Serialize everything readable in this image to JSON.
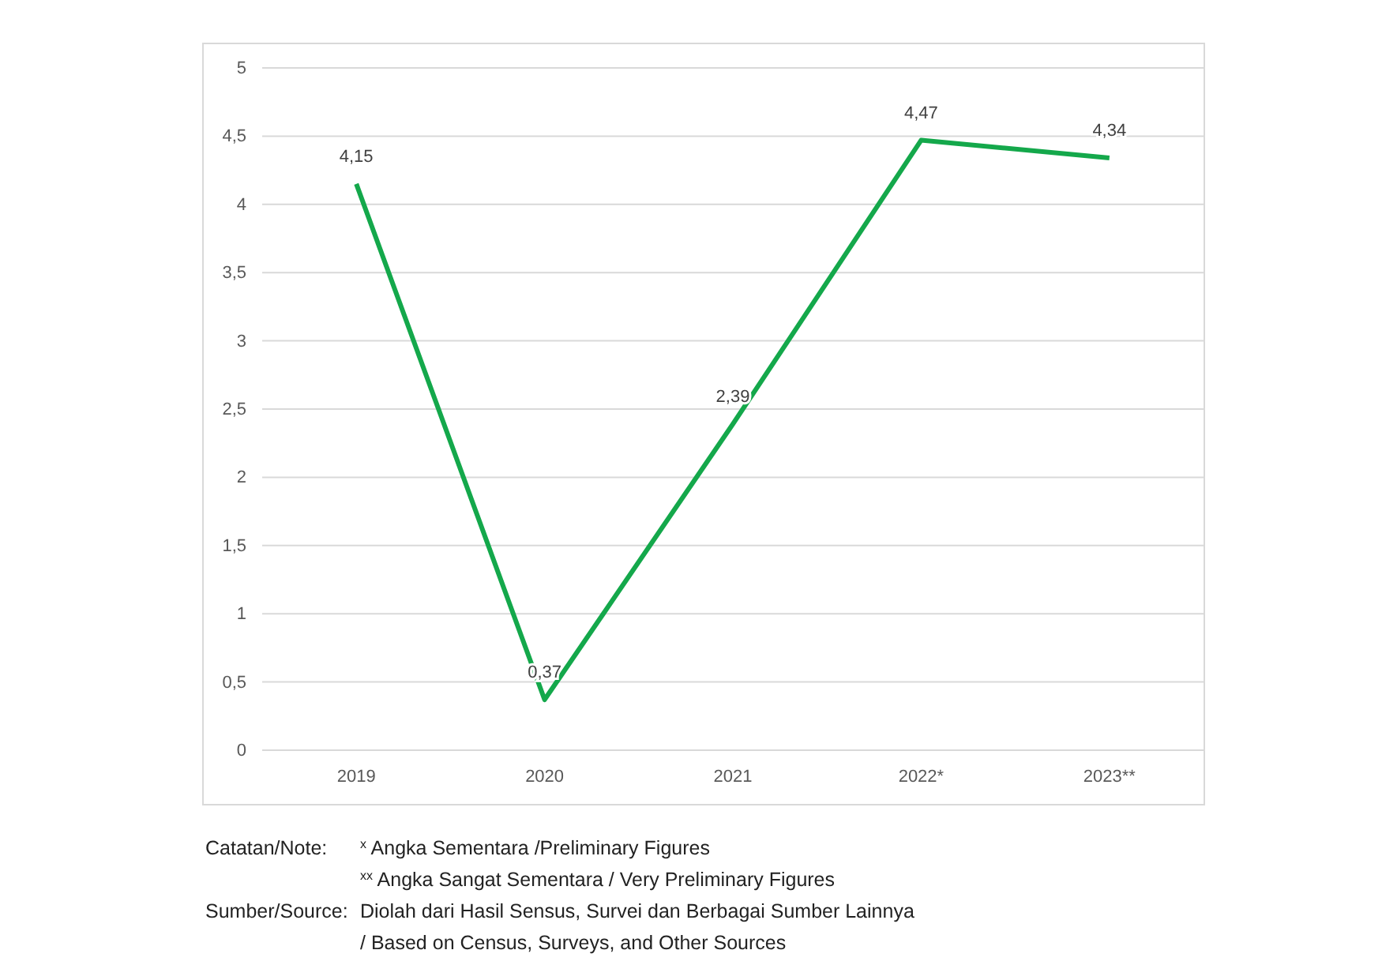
{
  "chart_data": {
    "type": "line",
    "categories": [
      "2019",
      "2020",
      "2021",
      "2022*",
      "2023**"
    ],
    "series": [
      {
        "color": "#14a84b",
        "values": [
          4.15,
          0.37,
          2.39,
          4.47,
          4.34
        ],
        "value_labels": [
          "4,15",
          "0,37",
          "2,39",
          "4,47",
          "4,34"
        ]
      }
    ],
    "ylim": [
      0,
      5
    ],
    "yticks": [
      0,
      {
        "value": 0.5,
        "label": "0,5"
      },
      1,
      {
        "value": 1.5,
        "label": "1,5"
      },
      2,
      {
        "value": 2.5,
        "label": "2,5"
      },
      3,
      {
        "value": 3.5,
        "label": "3,5"
      },
      4,
      {
        "value": 4.5,
        "label": "4,5"
      },
      5
    ],
    "grid": "y",
    "marker": "none",
    "line_style": "solid",
    "annotations": [
      "Catatan/Note:",
      "$^{x}$ Angka Sementara /Preliminary Figures",
      "$^{xx}$ Angka Sangat Sementara / Very Preliminary Figures",
      "Sumber/Source:",
      "Diolah dari Hasil Sensus, Survei dan Berbagai Sumber Lainnya",
      "/ Based on Census, Surveys, and Other Sources"
    ]
  }
}
